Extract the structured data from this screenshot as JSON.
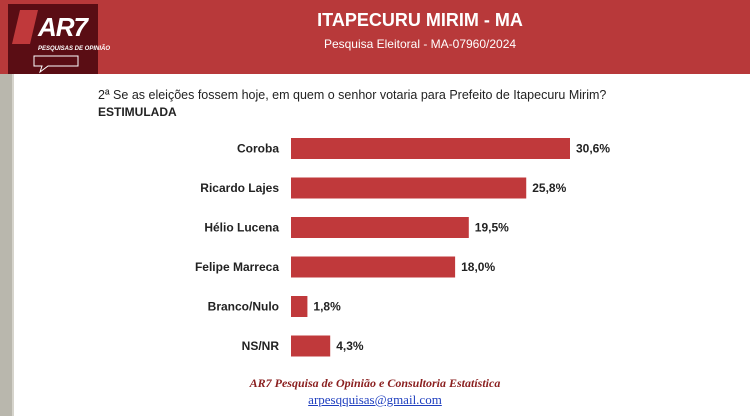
{
  "header": {
    "title": "ITAPECURU MIRIM - MA",
    "subtitle": "Pesquisa Eleitoral - MA-07960/2024",
    "logo_text": "AR7",
    "logo_tagline": "PESQUISAS DE OPINIÃO"
  },
  "question": {
    "text": "2ª  Se as eleições fossem hoje, em quem o senhor votaria para Prefeito de Itapecuru Mirim?",
    "type": "ESTIMULADA"
  },
  "chart_data": {
    "type": "bar",
    "orientation": "horizontal",
    "categories": [
      "Coroba",
      "Ricardo Lajes",
      "Hélio Lucena",
      "Felipe Marreca",
      "Branco/Nulo",
      "NS/NR"
    ],
    "values": [
      30.6,
      25.8,
      19.5,
      18.0,
      1.8,
      4.3
    ],
    "value_labels": [
      "30,6%",
      "25,8%",
      "19,5%",
      "18,0%",
      "1,8%",
      "4,3%"
    ],
    "bar_color": "#c0393b",
    "grid": false
  },
  "footer": {
    "org": "AR7  Pesquisa de Opinião e Consultoria Estatística",
    "email": "arpesqquisas@gmail.com"
  },
  "colors": {
    "header_bg": "#b8393a",
    "logo_bg": "#5a0d14"
  }
}
